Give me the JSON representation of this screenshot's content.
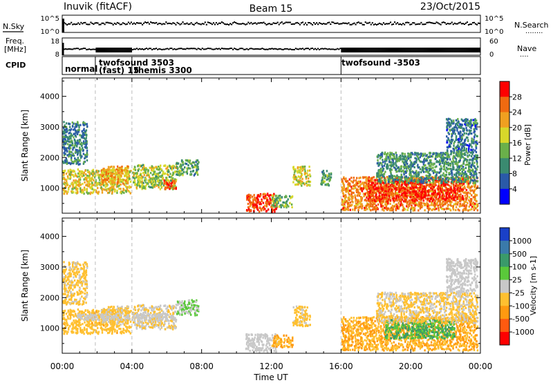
{
  "header": {
    "station": "Inuvik (fitACF)",
    "beam": "Beam 15",
    "date": "23/Oct/2015"
  },
  "nsky_panel": {
    "left_label": "N.Sky",
    "left_ticks": [
      "10^5",
      "10^0"
    ],
    "right_ticks": [
      "10^5",
      "10^0"
    ],
    "right_label": "N.Search",
    "right_label_dots": "........"
  },
  "freq_panel": {
    "left_label_1": "Freq.",
    "left_label_2": "[MHz]",
    "left_ticks": [
      "18",
      "8"
    ],
    "right_ticks": [
      "60",
      "0"
    ],
    "right_label": "Nave",
    "right_label_dots": "...."
  },
  "cpid_panel": {
    "label": "CPID",
    "modes": [
      {
        "text": "normal",
        "start_hour": 0.0
      },
      {
        "text": "twofsound 3503",
        "start_hour": 1.9
      },
      {
        "text": "(fast) 15",
        "start_hour": 1.9
      },
      {
        "text": "themis 3300",
        "start_hour": 4.0
      },
      {
        "text": "twofsound -3503",
        "start_hour": 16.0
      }
    ],
    "boundaries_hours": [
      1.9,
      4.0,
      16.0
    ]
  },
  "time_axis": {
    "label": "Time UT",
    "tick_labels": [
      "00:00",
      "04:00",
      "08:00",
      "12:00",
      "16:00",
      "20:00",
      "00:00"
    ],
    "range_hours": [
      0,
      24
    ]
  },
  "chart_data": [
    {
      "type": "heatmap",
      "name": "power",
      "ylabel": "Slant Range [km]",
      "y_ticks": [
        "1000",
        "2000",
        "3000",
        "4000"
      ],
      "ylim": [
        180,
        4600
      ],
      "colorbar_label": "Power [dB]",
      "colorbar_ticks": [
        "4",
        "8",
        "12",
        "16",
        "20",
        "24",
        "28"
      ],
      "colorbar_range": [
        0,
        32
      ],
      "colors": [
        "#0000ff",
        "#2a5aa8",
        "#3a8a70",
        "#6ab04a",
        "#d8d82a",
        "#f0a020",
        "#f06a10",
        "#ff0000"
      ],
      "regions": [
        {
          "x": [
            0.0,
            3.9
          ],
          "y": [
            850,
            1650
          ],
          "value": 19
        },
        {
          "x": [
            2.2,
            3.8
          ],
          "y": [
            1150,
            1750
          ],
          "value": 22
        },
        {
          "x": [
            4.0,
            6.5
          ],
          "y": [
            1000,
            1800
          ],
          "value": 16
        },
        {
          "x": [
            5.8,
            6.5
          ],
          "y": [
            1000,
            1300
          ],
          "value": 27
        },
        {
          "x": [
            0.0,
            1.4
          ],
          "y": [
            1800,
            3200
          ],
          "value": 9
        },
        {
          "x": [
            6.5,
            7.8
          ],
          "y": [
            1450,
            1950
          ],
          "value": 12
        },
        {
          "x": [
            10.5,
            12.3
          ],
          "y": [
            250,
            850
          ],
          "value": 28
        },
        {
          "x": [
            12.0,
            13.2
          ],
          "y": [
            400,
            800
          ],
          "value": 14
        },
        {
          "x": [
            13.2,
            14.2
          ],
          "y": [
            1100,
            1750
          ],
          "value": 18
        },
        {
          "x": [
            14.8,
            15.4
          ],
          "y": [
            1100,
            1600
          ],
          "value": 12
        },
        {
          "x": [
            16.0,
            23.8
          ],
          "y": [
            300,
            1400
          ],
          "value": 24
        },
        {
          "x": [
            17.5,
            23.0
          ],
          "y": [
            600,
            1300
          ],
          "value": 29
        },
        {
          "x": [
            18.0,
            23.8
          ],
          "y": [
            1200,
            2200
          ],
          "value": 11
        },
        {
          "x": [
            22.0,
            23.8
          ],
          "y": [
            2200,
            3300
          ],
          "value": 8
        }
      ]
    },
    {
      "type": "heatmap",
      "name": "velocity",
      "ylabel": "Slant Range [km]",
      "y_ticks": [
        "1000",
        "2000",
        "3000",
        "4000"
      ],
      "ylim": [
        180,
        4600
      ],
      "colorbar_label": "Velocity [m s-1]",
      "colorbar_ticks": [
        "1000",
        "500",
        "100",
        "25",
        "-25",
        "-100",
        "-500",
        "-1000"
      ],
      "colorbar_range": [
        -1200,
        1200
      ],
      "colors": [
        "#ff0000",
        "#ff5a10",
        "#ff9a10",
        "#ffc030",
        "#c8c8c8",
        "#5ac83a",
        "#3a9a6a",
        "#3a7aaa",
        "#1a40c8"
      ],
      "regions": [
        {
          "x": [
            0.0,
            3.9
          ],
          "y": [
            850,
            1650
          ],
          "value": -300
        },
        {
          "x": [
            2.2,
            3.8
          ],
          "y": [
            1150,
            1750
          ],
          "value": -150
        },
        {
          "x": [
            4.0,
            6.5
          ],
          "y": [
            1000,
            1800
          ],
          "value": -120
        },
        {
          "x": [
            0.8,
            6.5
          ],
          "y": [
            1300,
            1500
          ],
          "value": 0
        },
        {
          "x": [
            0.0,
            1.4
          ],
          "y": [
            1800,
            3200
          ],
          "value": -200
        },
        {
          "x": [
            6.5,
            7.8
          ],
          "y": [
            1450,
            1950
          ],
          "value": 150
        },
        {
          "x": [
            10.5,
            12.3
          ],
          "y": [
            250,
            850
          ],
          "value": 0
        },
        {
          "x": [
            12.0,
            13.2
          ],
          "y": [
            400,
            800
          ],
          "value": -400
        },
        {
          "x": [
            13.2,
            14.2
          ],
          "y": [
            1100,
            1750
          ],
          "value": -200
        },
        {
          "x": [
            16.0,
            23.8
          ],
          "y": [
            300,
            1400
          ],
          "value": -400
        },
        {
          "x": [
            18.5,
            22.5
          ],
          "y": [
            700,
            1300
          ],
          "value": 400
        },
        {
          "x": [
            18.0,
            23.8
          ],
          "y": [
            1200,
            2200
          ],
          "value": -150
        },
        {
          "x": [
            22.0,
            23.8
          ],
          "y": [
            2200,
            3300
          ],
          "value": 0
        }
      ]
    }
  ]
}
